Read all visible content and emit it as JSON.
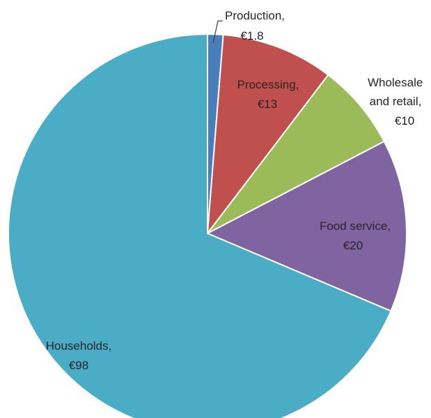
{
  "chart_data": {
    "type": "pie",
    "title": "",
    "unit": "€",
    "slices": [
      {
        "label": "Production,",
        "value_label": "€1.8",
        "value": 1.8,
        "color": "#4a7ebb"
      },
      {
        "label": "Processing,",
        "value_label": "€13",
        "value": 13,
        "color": "#c0504d"
      },
      {
        "label": "Wholesale and retail,",
        "value_label": "€10",
        "value": 10,
        "color": "#9bbb59"
      },
      {
        "label": "Food service,",
        "value_label": "€20",
        "value": 20,
        "color": "#8064a2"
      },
      {
        "label": "Households,",
        "value_label": "€98",
        "value": 98,
        "color": "#4bacc6"
      }
    ],
    "legend": "none",
    "start_angle": "12 o'clock",
    "direction": "clockwise"
  }
}
